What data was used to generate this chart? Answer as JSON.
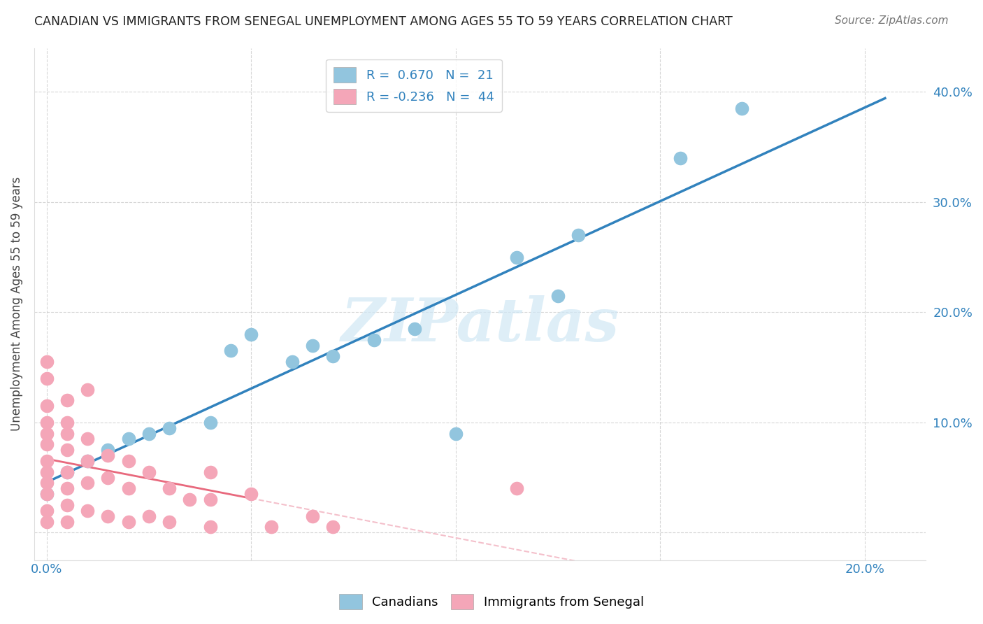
{
  "title": "CANADIAN VS IMMIGRANTS FROM SENEGAL UNEMPLOYMENT AMONG AGES 55 TO 59 YEARS CORRELATION CHART",
  "source": "Source: ZipAtlas.com",
  "ylabel": "Unemployment Among Ages 55 to 59 years",
  "xlim": [
    -0.003,
    0.215
  ],
  "ylim": [
    -0.025,
    0.44
  ],
  "legend_r1": "R =  0.670",
  "legend_n1": "N =  21",
  "legend_r2": "R = -0.236",
  "legend_n2": "N =  44",
  "blue_color": "#92c5de",
  "pink_color": "#f4a6b8",
  "blue_line_color": "#3182bd",
  "pink_line_color": "#e8697d",
  "pink_dash_color": "#f4c0cb",
  "watermark": "ZIPatlas",
  "canadians_x": [
    0.0,
    0.005,
    0.01,
    0.015,
    0.02,
    0.025,
    0.03,
    0.04,
    0.045,
    0.05,
    0.06,
    0.065,
    0.07,
    0.08,
    0.09,
    0.1,
    0.115,
    0.125,
    0.13,
    0.155,
    0.17
  ],
  "canadians_y": [
    0.035,
    0.055,
    0.065,
    0.075,
    0.085,
    0.09,
    0.095,
    0.1,
    0.165,
    0.18,
    0.155,
    0.17,
    0.16,
    0.175,
    0.185,
    0.09,
    0.25,
    0.215,
    0.27,
    0.34,
    0.385
  ],
  "senegal_x": [
    0.0,
    0.0,
    0.0,
    0.0,
    0.0,
    0.0,
    0.0,
    0.0,
    0.0,
    0.0,
    0.0,
    0.0,
    0.005,
    0.005,
    0.005,
    0.005,
    0.005,
    0.005,
    0.005,
    0.005,
    0.01,
    0.01,
    0.01,
    0.01,
    0.01,
    0.015,
    0.015,
    0.015,
    0.02,
    0.02,
    0.02,
    0.025,
    0.025,
    0.03,
    0.03,
    0.035,
    0.04,
    0.04,
    0.04,
    0.05,
    0.055,
    0.065,
    0.07,
    0.115
  ],
  "senegal_y": [
    0.155,
    0.14,
    0.115,
    0.1,
    0.09,
    0.08,
    0.065,
    0.055,
    0.045,
    0.035,
    0.02,
    0.01,
    0.12,
    0.1,
    0.09,
    0.075,
    0.055,
    0.04,
    0.025,
    0.01,
    0.13,
    0.085,
    0.065,
    0.045,
    0.02,
    0.07,
    0.05,
    0.015,
    0.065,
    0.04,
    0.01,
    0.055,
    0.015,
    0.04,
    0.01,
    0.03,
    0.055,
    0.03,
    0.005,
    0.035,
    0.005,
    0.015,
    0.005,
    0.04
  ]
}
